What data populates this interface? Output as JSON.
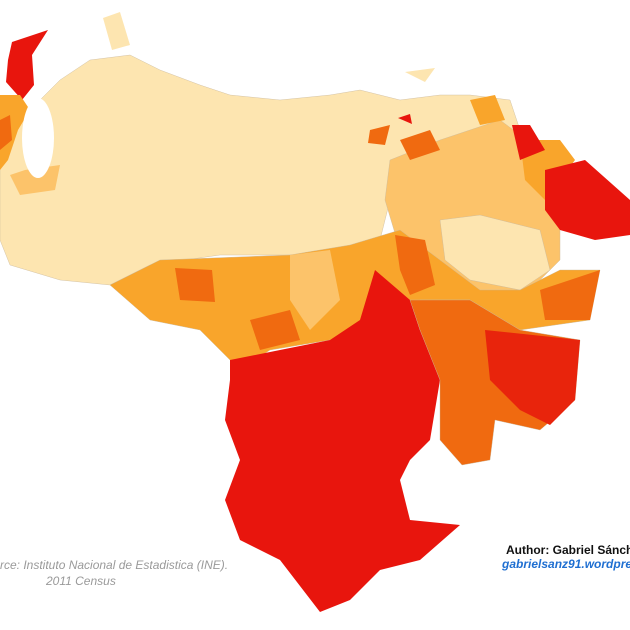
{
  "source": {
    "line1": "rce: Instituto Nacional de Estadistica (INE).",
    "line2": "2011 Census"
  },
  "author": {
    "name": "Author: Gabriel Sánche",
    "website": "gabrielsanz91.wordpre"
  }
}
